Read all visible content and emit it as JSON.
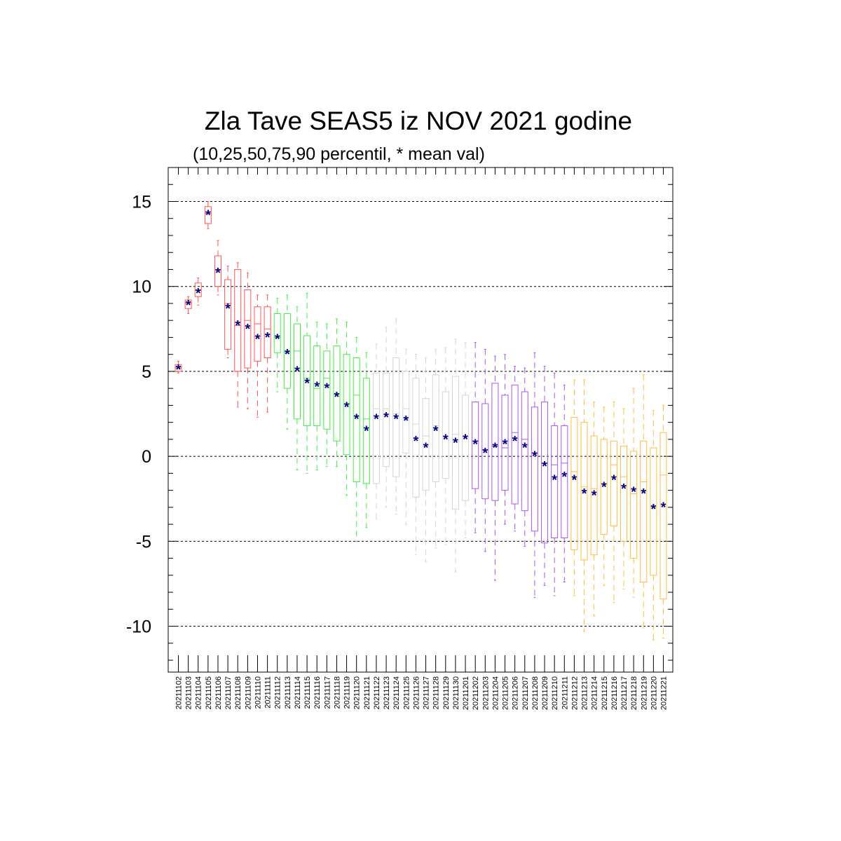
{
  "chart_data": {
    "type": "box",
    "title": "Zla Tave SEAS5 iz NOV 2021 godine",
    "subtitle": "(10,25,50,75,90 percentil, * mean val)",
    "ylim": [
      -12.7,
      17
    ],
    "yticks": [
      "15",
      "10",
      "5",
      "0",
      "-5",
      "-10"
    ],
    "ytick_values": [
      15,
      10,
      5,
      0,
      -5,
      -10
    ],
    "grid": "horizontal dashed",
    "colors": {
      "red": "#ff5555",
      "green": "#44ee44",
      "gray": "#d4d4d4",
      "purple": "#aa55ee",
      "orange": "#ffbb44",
      "mean": "#000080"
    },
    "categories": [
      "20211102",
      "20211103",
      "20211104",
      "20211105",
      "20211106",
      "20211107",
      "20211108",
      "20211109",
      "20211110",
      "20211111",
      "20211112",
      "20211113",
      "20211114",
      "20211115",
      "20211116",
      "20211117",
      "20211118",
      "20211119",
      "20211120",
      "20211121",
      "20211122",
      "20211123",
      "20211124",
      "20211125",
      "20211126",
      "20211127",
      "20211128",
      "20211129",
      "20211130",
      "20211201",
      "20211202",
      "20211203",
      "20211204",
      "20211205",
      "20211206",
      "20211207",
      "20211208",
      "20211209",
      "20211210",
      "20211211",
      "20211212",
      "20211213",
      "20211214",
      "20211215",
      "20211216",
      "20211217",
      "20211218",
      "20211219",
      "20211220",
      "20211221"
    ],
    "boxes": [
      {
        "p10": 4.9,
        "p25": 5.0,
        "p50": 5.2,
        "p75": 5.4,
        "p90": 5.6,
        "mean": 5.2,
        "color": "red"
      },
      {
        "p10": 8.4,
        "p25": 8.7,
        "p50": 9.0,
        "p75": 9.2,
        "p90": 9.4,
        "mean": 9.0,
        "color": "red"
      },
      {
        "p10": 8.9,
        "p25": 9.4,
        "p50": 9.8,
        "p75": 10.2,
        "p90": 10.5,
        "mean": 9.7,
        "color": "red"
      },
      {
        "p10": 13.4,
        "p25": 13.7,
        "p50": 14.3,
        "p75": 14.7,
        "p90": 15.0,
        "mean": 14.3,
        "color": "red"
      },
      {
        "p10": 9.5,
        "p25": 10.0,
        "p50": 11.0,
        "p75": 11.8,
        "p90": 12.7,
        "mean": 10.9,
        "color": "red"
      },
      {
        "p10": 5.8,
        "p25": 6.3,
        "p50": 9.0,
        "p75": 10.4,
        "p90": 11.2,
        "mean": 8.8,
        "color": "red"
      },
      {
        "p10": 2.9,
        "p25": 5.0,
        "p50": 7.7,
        "p75": 11.0,
        "p90": 11.4,
        "mean": 7.8,
        "color": "red"
      },
      {
        "p10": 2.8,
        "p25": 5.2,
        "p50": 8.0,
        "p75": 9.8,
        "p90": 10.8,
        "mean": 7.6,
        "color": "red"
      },
      {
        "p10": 2.3,
        "p25": 5.6,
        "p50": 7.8,
        "p75": 8.8,
        "p90": 9.5,
        "mean": 7.0,
        "color": "red"
      },
      {
        "p10": 2.6,
        "p25": 5.8,
        "p50": 7.5,
        "p75": 8.8,
        "p90": 9.5,
        "mean": 7.1,
        "color": "red"
      },
      {
        "p10": 3.8,
        "p25": 6.1,
        "p50": 7.0,
        "p75": 8.4,
        "p90": 9.3,
        "mean": 7.0,
        "color": "green"
      },
      {
        "p10": 1.6,
        "p25": 4.0,
        "p50": 6.1,
        "p75": 8.4,
        "p90": 9.5,
        "mean": 6.1,
        "color": "green"
      },
      {
        "p10": -0.8,
        "p25": 2.2,
        "p50": 6.2,
        "p75": 7.8,
        "p90": 8.8,
        "mean": 5.1,
        "color": "green"
      },
      {
        "p10": -1.0,
        "p25": 1.8,
        "p50": 4.6,
        "p75": 7.1,
        "p90": 9.6,
        "mean": 4.4,
        "color": "green"
      },
      {
        "p10": -0.8,
        "p25": 1.8,
        "p50": 4.0,
        "p75": 6.5,
        "p90": 7.9,
        "mean": 4.2,
        "color": "green"
      },
      {
        "p10": -0.6,
        "p25": 1.6,
        "p50": 4.6,
        "p75": 6.2,
        "p90": 7.8,
        "mean": 4.1,
        "color": "green"
      },
      {
        "p10": -0.6,
        "p25": 0.9,
        "p50": 3.7,
        "p75": 6.5,
        "p90": 8.1,
        "mean": 3.6,
        "color": "green"
      },
      {
        "p10": -2.3,
        "p25": 0.1,
        "p50": 3.1,
        "p75": 6.0,
        "p90": 7.9,
        "mean": 3.0,
        "color": "green"
      },
      {
        "p10": -5.0,
        "p25": -1.5,
        "p50": 3.6,
        "p75": 5.8,
        "p90": 7.0,
        "mean": 2.3,
        "color": "green"
      },
      {
        "p10": -4.2,
        "p25": -1.6,
        "p50": 2.2,
        "p75": 4.6,
        "p90": 6.1,
        "mean": 1.6,
        "color": "green"
      },
      {
        "p10": -3.7,
        "p25": -1.6,
        "p50": 2.8,
        "p75": 4.9,
        "p90": 6.6,
        "mean": 2.3,
        "color": "gray"
      },
      {
        "p10": -3.0,
        "p25": -0.6,
        "p50": 2.8,
        "p75": 4.9,
        "p90": 7.6,
        "mean": 2.4,
        "color": "gray"
      },
      {
        "p10": -3.4,
        "p25": -1.2,
        "p50": 2.5,
        "p75": 5.8,
        "p90": 8.1,
        "mean": 2.3,
        "color": "gray"
      },
      {
        "p10": -4.0,
        "p25": 0.2,
        "p50": 2.8,
        "p75": 5.0,
        "p90": 6.3,
        "mean": 2.2,
        "color": "gray"
      },
      {
        "p10": -5.8,
        "p25": -2.4,
        "p50": 1.9,
        "p75": 4.6,
        "p90": 6.0,
        "mean": 1.0,
        "color": "gray"
      },
      {
        "p10": -6.2,
        "p25": -2.0,
        "p50": 1.2,
        "p75": 3.4,
        "p90": 5.8,
        "mean": 0.6,
        "color": "gray"
      },
      {
        "p10": -5.4,
        "p25": -1.5,
        "p50": 1.8,
        "p75": 4.8,
        "p90": 6.3,
        "mean": 1.6,
        "color": "gray"
      },
      {
        "p10": -5.2,
        "p25": -1.3,
        "p50": 1.0,
        "p75": 3.8,
        "p90": 6.4,
        "mean": 1.1,
        "color": "gray"
      },
      {
        "p10": -6.8,
        "p25": -3.1,
        "p50": 1.3,
        "p75": 4.7,
        "p90": 6.9,
        "mean": 0.9,
        "color": "gray"
      },
      {
        "p10": -4.8,
        "p25": -2.6,
        "p50": 1.2,
        "p75": 3.6,
        "p90": 6.7,
        "mean": 1.1,
        "color": "gray"
      },
      {
        "p10": -4.5,
        "p25": -1.9,
        "p50": 0.9,
        "p75": 3.2,
        "p90": 6.7,
        "mean": 0.8,
        "color": "purple"
      },
      {
        "p10": -5.6,
        "p25": -2.5,
        "p50": 0.4,
        "p75": 3.1,
        "p90": 6.3,
        "mean": 0.3,
        "color": "purple"
      },
      {
        "p10": -7.3,
        "p25": -2.6,
        "p50": 0.6,
        "p75": 4.3,
        "p90": 5.9,
        "mean": 0.6,
        "color": "purple"
      },
      {
        "p10": -4.0,
        "p25": -2.0,
        "p50": 0.5,
        "p75": 3.6,
        "p90": 6.0,
        "mean": 0.8,
        "color": "purple"
      },
      {
        "p10": -4.4,
        "p25": -2.8,
        "p50": 1.4,
        "p75": 4.2,
        "p90": 5.3,
        "mean": 1.0,
        "color": "purple"
      },
      {
        "p10": -5.3,
        "p25": -3.2,
        "p50": 1.0,
        "p75": 3.8,
        "p90": 5.2,
        "mean": 0.6,
        "color": "purple"
      },
      {
        "p10": -8.3,
        "p25": -4.4,
        "p50": 0.2,
        "p75": 2.9,
        "p90": 6.1,
        "mean": 0.1,
        "color": "purple"
      },
      {
        "p10": -7.6,
        "p25": -5.1,
        "p50": -0.4,
        "p75": 3.2,
        "p90": 5.3,
        "mean": -0.5,
        "color": "purple"
      },
      {
        "p10": -8.2,
        "p25": -4.8,
        "p50": -0.5,
        "p75": 1.8,
        "p90": 4.9,
        "mean": -1.3,
        "color": "purple"
      },
      {
        "p10": -7.4,
        "p25": -4.8,
        "p50": -0.4,
        "p75": 1.8,
        "p90": 4.2,
        "mean": -1.1,
        "color": "purple"
      },
      {
        "p10": -8.2,
        "p25": -5.5,
        "p50": -0.9,
        "p75": 2.3,
        "p90": 4.5,
        "mean": -1.3,
        "color": "orange"
      },
      {
        "p10": -10.3,
        "p25": -6.1,
        "p50": -1.8,
        "p75": 2.0,
        "p90": 4.5,
        "mean": -2.1,
        "color": "orange"
      },
      {
        "p10": -9.4,
        "p25": -5.8,
        "p50": -1.9,
        "p75": 1.2,
        "p90": 3.2,
        "mean": -2.2,
        "color": "orange"
      },
      {
        "p10": -7.6,
        "p25": -4.6,
        "p50": -1.6,
        "p75": 1.0,
        "p90": 2.9,
        "mean": -1.7,
        "color": "orange"
      },
      {
        "p10": -8.6,
        "p25": -4.1,
        "p50": -0.5,
        "p75": 0.9,
        "p90": 3.2,
        "mean": -1.3,
        "color": "orange"
      },
      {
        "p10": -7.8,
        "p25": -5.0,
        "p50": -1.2,
        "p75": 0.6,
        "p90": 2.8,
        "mean": -1.8,
        "color": "orange"
      },
      {
        "p10": -8.3,
        "p25": -6.0,
        "p50": -2.2,
        "p75": 0.3,
        "p90": 4.0,
        "mean": -2.0,
        "color": "orange"
      },
      {
        "p10": -10.1,
        "p25": -7.4,
        "p50": -1.5,
        "p75": 0.9,
        "p90": 4.8,
        "mean": -2.1,
        "color": "orange"
      },
      {
        "p10": -10.8,
        "p25": -7.0,
        "p50": -3.0,
        "p75": 0.5,
        "p90": 2.7,
        "mean": -3.0,
        "color": "orange"
      },
      {
        "p10": -10.7,
        "p25": -8.4,
        "p50": -1.1,
        "p75": 1.4,
        "p90": 3.0,
        "mean": -2.9,
        "color": "orange"
      }
    ]
  }
}
